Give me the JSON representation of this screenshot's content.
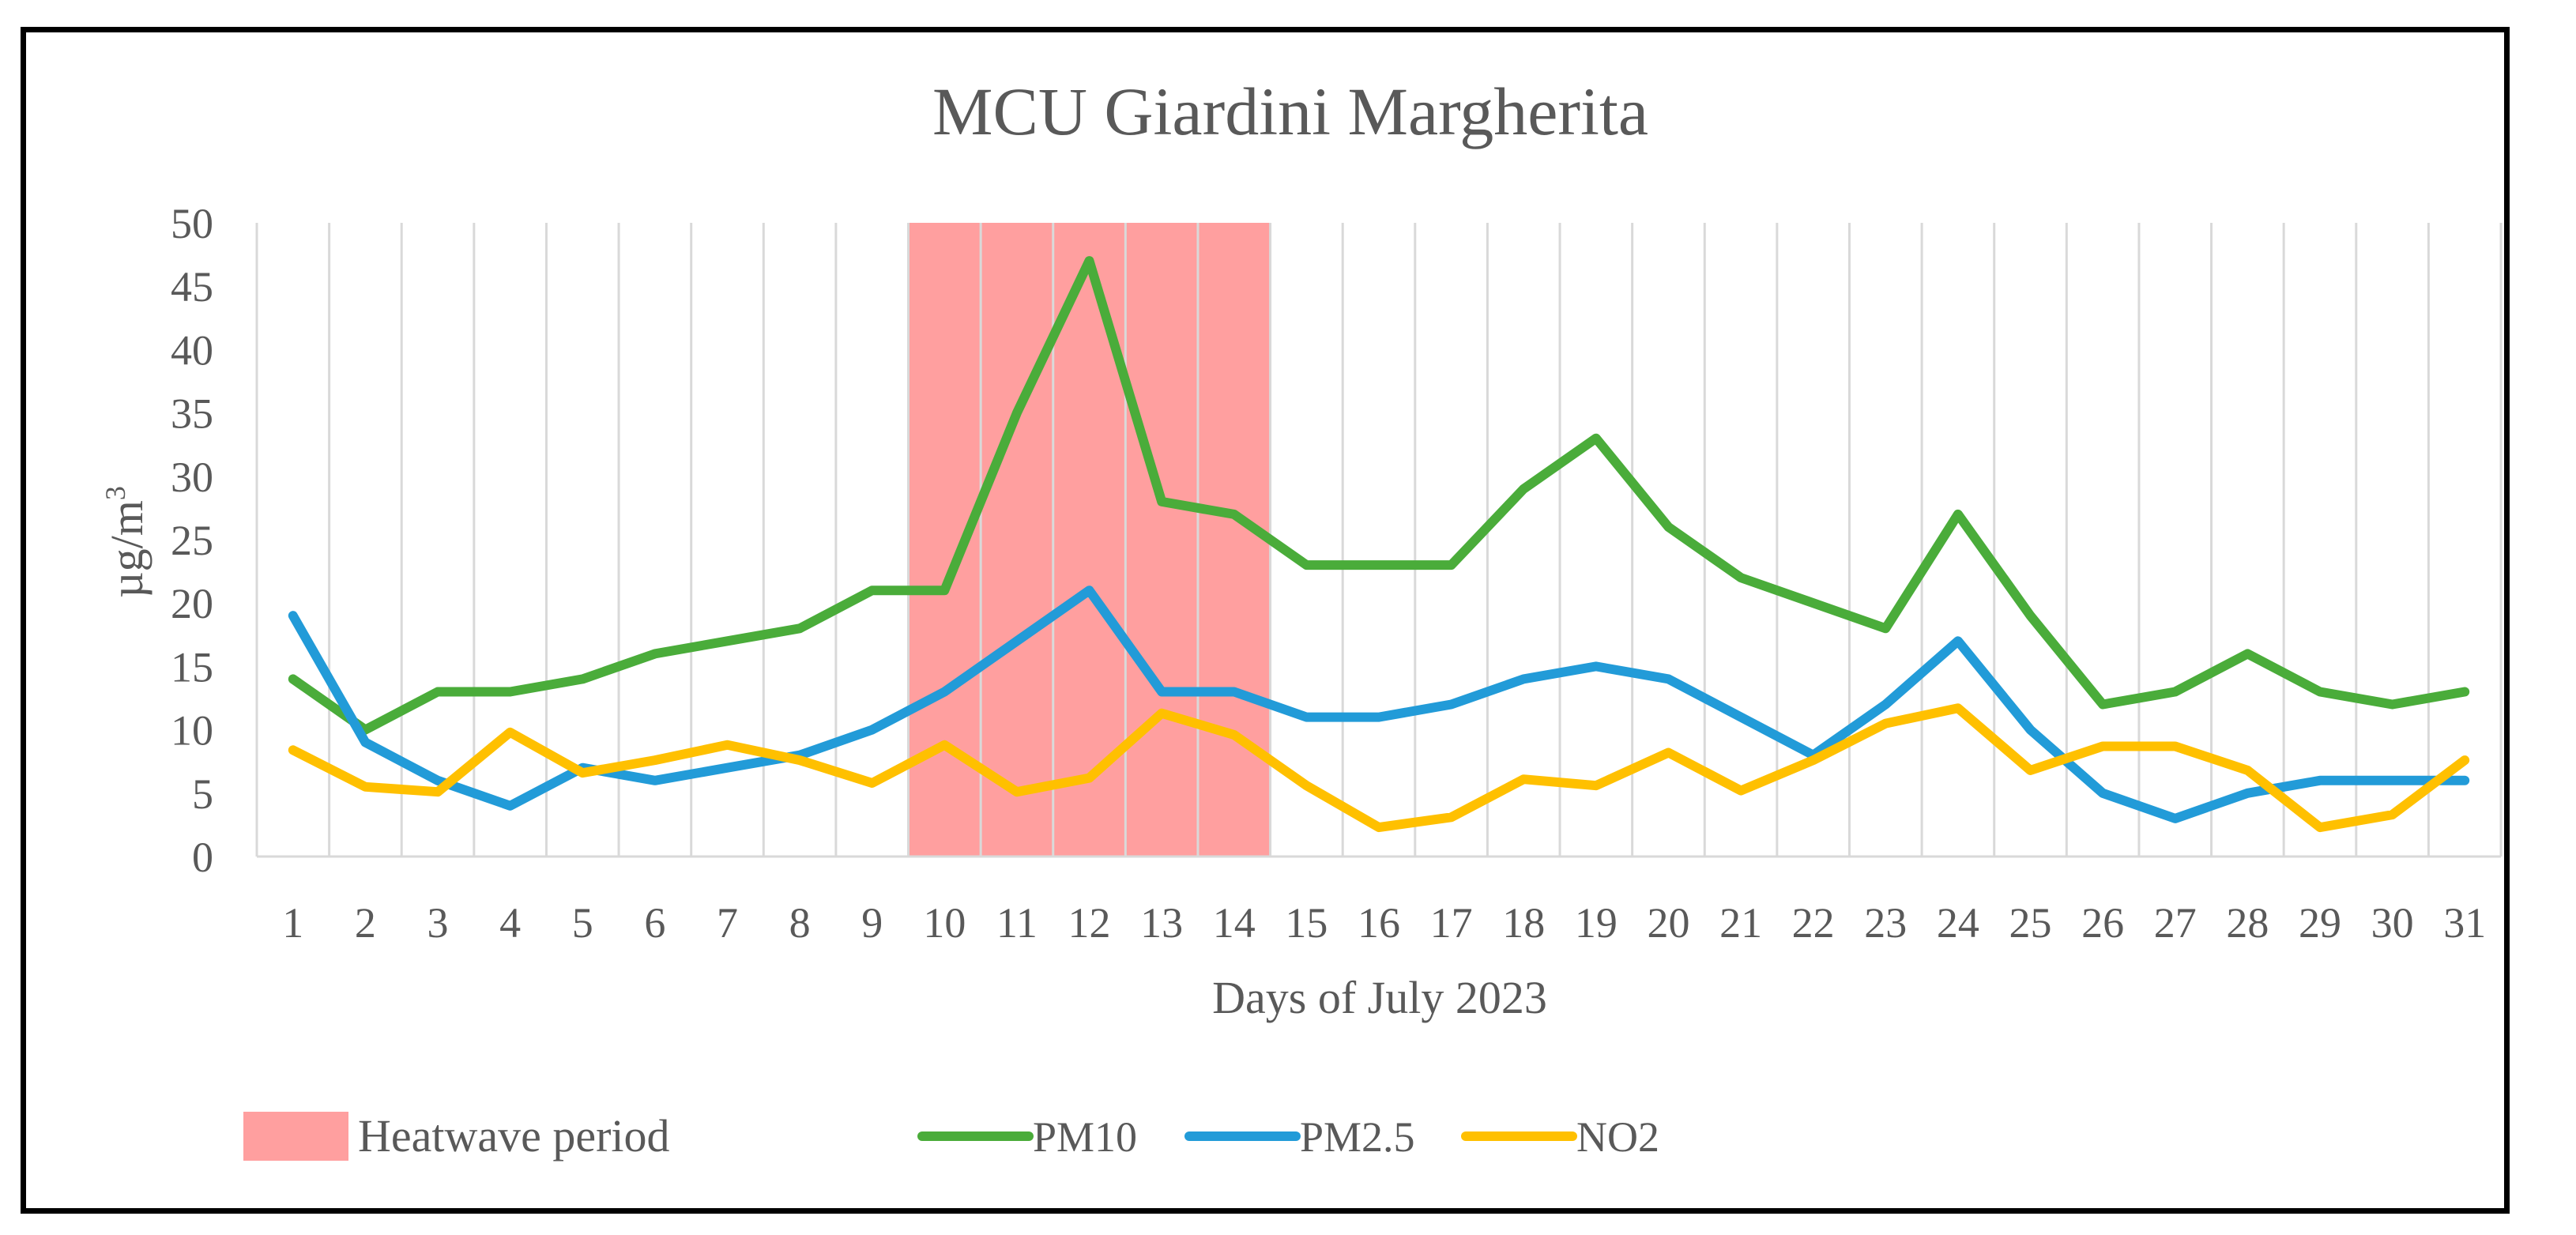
{
  "chart_data": {
    "type": "line",
    "title": "MCU Giardini Margherita",
    "xlabel": "Days of July 2023",
    "ylabel_main": "µg/m",
    "ylabel_sup": "3",
    "categories": [
      "1",
      "2",
      "3",
      "4",
      "5",
      "6",
      "7",
      "8",
      "9",
      "10",
      "11",
      "12",
      "13",
      "14",
      "15",
      "16",
      "17",
      "18",
      "19",
      "20",
      "21",
      "22",
      "23",
      "24",
      "25",
      "26",
      "27",
      "28",
      "29",
      "30",
      "31"
    ],
    "ylim": [
      0,
      50
    ],
    "yticks": [
      "0",
      "5",
      "10",
      "15",
      "20",
      "25",
      "30",
      "35",
      "40",
      "45",
      "50"
    ],
    "grid": "vertical",
    "heatwave": {
      "label": "Heatwave period",
      "from_day": 10,
      "to_day": 14,
      "color": "#ff9f9f"
    },
    "series": [
      {
        "name": "PM10",
        "color": "#4aac3a",
        "values": [
          14,
          10,
          13,
          13,
          14,
          16,
          17,
          18,
          21,
          21,
          35,
          47,
          28,
          27,
          23,
          23,
          23,
          29,
          33,
          26,
          22,
          20,
          18,
          27,
          19,
          12,
          13,
          16,
          13,
          12,
          13
        ]
      },
      {
        "name": "PM2.5",
        "color": "#229bd8",
        "values": [
          19,
          9,
          6,
          4,
          7,
          6,
          7,
          8,
          10,
          13,
          17,
          21,
          13,
          13,
          11,
          11,
          12,
          14,
          15,
          14,
          11,
          8,
          12,
          17,
          10,
          5,
          3,
          5,
          6,
          6,
          6
        ]
      },
      {
        "name": "NO2",
        "color": "#ffc000",
        "values": [
          8.4,
          5.5,
          5.1,
          9.8,
          6.6,
          7.6,
          8.8,
          7.6,
          5.8,
          8.8,
          5.1,
          6.2,
          11.3,
          9.6,
          5.6,
          2.3,
          3.1,
          6.1,
          5.6,
          8.2,
          5.2,
          7.6,
          10.5,
          11.7,
          6.8,
          8.7,
          8.7,
          6.8,
          2.3,
          3.3,
          7.6
        ]
      }
    ],
    "legend": "bottom"
  }
}
